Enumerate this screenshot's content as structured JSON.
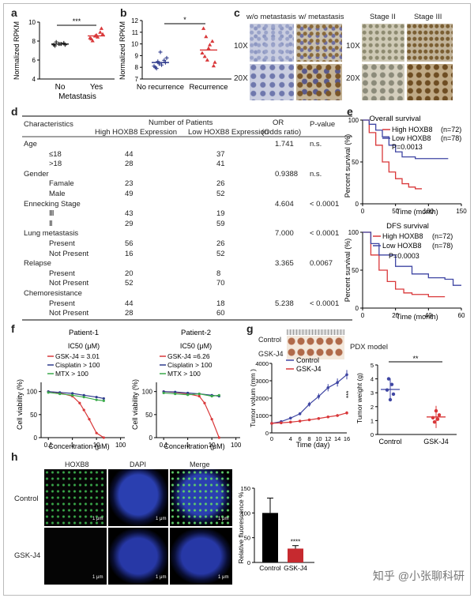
{
  "panels": [
    "a",
    "b",
    "c",
    "d",
    "e",
    "f",
    "g",
    "h"
  ],
  "panel_a": {
    "ylabel": "Normalized RPKM",
    "sig": "***",
    "xticks": [
      "No",
      "Yes"
    ],
    "xlabel": "Metastasis",
    "yticks": [
      "4",
      "6",
      "8",
      "10"
    ]
  },
  "panel_b": {
    "ylabel": "Normalized RPKM",
    "sig": "*",
    "xticks": [
      "No recurrence",
      "Recurrence"
    ],
    "yticks": [
      "7",
      "8",
      "9",
      "10",
      "11",
      "12"
    ]
  },
  "panel_c": {
    "left_cols": [
      "w/o metastasis",
      "w/ metastasis"
    ],
    "right_cols": [
      "Stage II",
      "Stage III"
    ],
    "rows": [
      "10X",
      "20X"
    ]
  },
  "panel_d": {
    "headers": {
      "characteristics": "Characteristics",
      "num": "Number of Patients",
      "high": "High HOXB8 Expression",
      "low": "Low HOXB8 Expression",
      "or": "OR",
      "or2": "(Odds ratio)",
      "p": "P-value"
    },
    "rows": [
      {
        "label": "Age",
        "high": "",
        "low": "",
        "or": "1.741",
        "p": "n.s.",
        "indent": false
      },
      {
        "label": "≤18",
        "high": "44",
        "low": "37",
        "or": "",
        "p": "",
        "indent": true
      },
      {
        "label": ">18",
        "high": "28",
        "low": "41",
        "or": "",
        "p": "",
        "indent": true
      },
      {
        "label": "Gender",
        "high": "",
        "low": "",
        "or": "0.9388",
        "p": "n.s.",
        "indent": false
      },
      {
        "label": "Famale",
        "high": "23",
        "low": "26",
        "or": "",
        "p": "",
        "indent": true
      },
      {
        "label": "Male",
        "high": "49",
        "low": "52",
        "or": "",
        "p": "",
        "indent": true
      },
      {
        "label": "Ennecking Stage",
        "high": "",
        "low": "",
        "or": "4.604",
        "p": "< 0.0001",
        "indent": false
      },
      {
        "label": "Ⅲ",
        "high": "43",
        "low": "19",
        "or": "",
        "p": "",
        "indent": true
      },
      {
        "label": "Ⅱ",
        "high": "29",
        "low": "59",
        "or": "",
        "p": "",
        "indent": true
      },
      {
        "label": "Lung metastasis",
        "high": "",
        "low": "",
        "or": "7.000",
        "p": "< 0.0001",
        "indent": false
      },
      {
        "label": "Present",
        "high": "56",
        "low": "26",
        "or": "",
        "p": "",
        "indent": true
      },
      {
        "label": "Not Present",
        "high": "16",
        "low": "52",
        "or": "",
        "p": "",
        "indent": true
      },
      {
        "label": "Relapse",
        "high": "",
        "low": "",
        "or": "3.365",
        "p": "0.0067",
        "indent": false
      },
      {
        "label": "Present",
        "high": "20",
        "low": "8",
        "or": "",
        "p": "",
        "indent": true
      },
      {
        "label": "Not Present",
        "high": "52",
        "low": "70",
        "or": "",
        "p": "",
        "indent": true
      },
      {
        "label": "Chemoresistance",
        "high": "",
        "low": "",
        "or": "",
        "p": "",
        "indent": false
      },
      {
        "label": "Present",
        "high": "44",
        "low": "18",
        "or": "5.238",
        "p": "< 0.0001",
        "indent": true
      },
      {
        "label": "Not Present",
        "high": "28",
        "low": "60",
        "or": "",
        "p": "",
        "indent": true
      }
    ]
  },
  "panel_e": {
    "top": {
      "title": "Overall survival",
      "high": "High HOXB8",
      "high_n": "(n=72)",
      "low": "Low HOXB8",
      "low_n": "(n=78)",
      "p": "P=0.0013",
      "ylabel": "Percent survival (%)",
      "xlabel": "Time (month)",
      "xticks": [
        "0",
        "50",
        "100",
        "150"
      ],
      "yticks": [
        "0",
        "50",
        "100"
      ]
    },
    "bottom": {
      "title": "DFS survival",
      "high": "High HOXB8",
      "high_n": "(n=72)",
      "low": "Low HOXB8",
      "low_n": "(n=78)",
      "p": "P=0.0003",
      "ylabel": "Percent survival (%)",
      "xlabel": "Time (month)",
      "xticks": [
        "0",
        "20",
        "40",
        "60"
      ],
      "yticks": [
        "0",
        "50",
        "100"
      ]
    }
  },
  "panel_f": {
    "p1": {
      "title": "Patient-1",
      "ic50": "IC50 (μM)",
      "l1": "GSK-J4 = 3.01",
      "l2": "Cisplatin > 100",
      "l3": "MTX > 100"
    },
    "p2": {
      "title": "Patient-2",
      "ic50": "IC50 (μM)",
      "l1": "GSK-J4 =6.26",
      "l2": "Cisplatin > 100",
      "l3": "MTX > 100"
    },
    "ylabel": "Cell viability (%)",
    "xlabel": "Concentration (μM)",
    "xticks": [
      "0.1",
      "1",
      "10",
      "100"
    ],
    "yticks": [
      "0",
      "50",
      "100"
    ]
  },
  "panel_g": {
    "img_rows": [
      "Control",
      "GSK-J4"
    ],
    "model": "PDX model",
    "ylabel": "Tumor volum (mm )",
    "xlabel": "Time (day)",
    "legend": [
      "Control",
      "GSK-J4"
    ],
    "sig": "***",
    "xticks": [
      "0",
      "4",
      "6",
      "8",
      "10",
      "12",
      "14",
      "16"
    ],
    "yticks": [
      "0",
      "1000",
      "2000",
      "3000",
      "4000"
    ],
    "w_ylabel": "Tumor weight (g)",
    "w_sig": "**",
    "w_xticks": [
      "Control",
      "GSK-J4"
    ],
    "w_yticks": [
      "0",
      "1",
      "2",
      "3",
      "4",
      "5"
    ]
  },
  "panel_h": {
    "cols": [
      "HOXB8",
      "DAPI",
      "Merge"
    ],
    "rows": [
      "Control",
      "GSK-J4"
    ],
    "scale": "1 μm",
    "ylabel": "Relative fluorescence %",
    "sig": "****",
    "xticks": [
      "Control",
      "GSK-J4"
    ],
    "yticks": [
      "0",
      "50",
      "100",
      "150"
    ]
  },
  "watermark": "知乎 @小张聊科研",
  "chart_data": [
    {
      "type": "scatter",
      "panel": "a",
      "categories": [
        "No",
        "Yes"
      ],
      "ylabel": "Normalized RPKM",
      "ylim": [
        4,
        10
      ],
      "series": [
        {
          "values": [
            7.6,
            7.7,
            7.8,
            7.5,
            7.7,
            7.6,
            7.9,
            7.7
          ]
        },
        {
          "values": [
            8.3,
            8.5,
            8.9,
            8.2,
            8.6,
            9.3,
            8.0,
            8.4,
            8.7
          ]
        }
      ]
    },
    {
      "type": "scatter",
      "panel": "b",
      "categories": [
        "No recurrence",
        "Recurrence"
      ],
      "ylabel": "Normalized RPKM",
      "ylim": [
        7,
        12
      ],
      "series": [
        {
          "values": [
            8.1,
            8.3,
            8.6,
            8.0,
            9.3,
            8.4,
            7.9,
            8.2,
            8.8,
            8.5
          ]
        },
        {
          "values": [
            9.2,
            8.6,
            10.2,
            11.3,
            9.6,
            8.1,
            8.9,
            9.9,
            8.4,
            10.6
          ]
        }
      ]
    },
    {
      "type": "line",
      "panel": "e-top",
      "xlabel": "Time (month)",
      "ylabel": "Percent survival (%)",
      "ylim": [
        0,
        100
      ],
      "series": [
        {
          "name": "High HOXB8",
          "x": [
            0,
            10,
            20,
            30,
            40,
            50,
            60,
            70,
            80,
            90
          ],
          "values": [
            100,
            85,
            70,
            50,
            38,
            30,
            24,
            20,
            18,
            18
          ]
        },
        {
          "name": "Low HOXB8",
          "x": [
            0,
            10,
            20,
            30,
            40,
            50,
            60,
            80,
            100,
            130
          ],
          "values": [
            100,
            95,
            88,
            80,
            70,
            62,
            56,
            54,
            54,
            54
          ]
        }
      ]
    },
    {
      "type": "line",
      "panel": "e-bottom",
      "xlabel": "Time (month)",
      "ylabel": "Percent survival (%)",
      "ylim": [
        0,
        100
      ],
      "series": [
        {
          "name": "High HOXB8",
          "x": [
            0,
            5,
            10,
            15,
            20,
            25,
            30,
            40,
            50
          ],
          "values": [
            100,
            70,
            50,
            35,
            25,
            20,
            18,
            15,
            15
          ]
        },
        {
          "name": "Low HOXB8",
          "x": [
            0,
            5,
            10,
            20,
            30,
            40,
            50,
            55,
            60
          ],
          "values": [
            100,
            85,
            70,
            55,
            45,
            40,
            38,
            30,
            30
          ]
        }
      ]
    },
    {
      "type": "line",
      "panel": "f-1",
      "xlabel": "Concentration (μM)",
      "ylabel": "Cell viability (%)",
      "ylim": [
        0,
        120
      ],
      "series": [
        {
          "name": "GSK-J4",
          "x": [
            0.1,
            0.3,
            1,
            2,
            3,
            5,
            10,
            20
          ],
          "values": [
            100,
            97,
            90,
            75,
            60,
            40,
            10,
            0
          ]
        },
        {
          "name": "Cisplatin",
          "x": [
            0.1,
            0.3,
            1,
            3,
            10,
            20
          ],
          "values": [
            100,
            98,
            96,
            92,
            88,
            85
          ]
        },
        {
          "name": "MTX",
          "x": [
            0.1,
            0.3,
            1,
            3,
            10,
            20
          ],
          "values": [
            98,
            95,
            92,
            88,
            82,
            80
          ]
        }
      ]
    },
    {
      "type": "line",
      "panel": "f-2",
      "xlabel": "Concentration (μM)",
      "ylabel": "Cell viability (%)",
      "ylim": [
        0,
        120
      ],
      "series": [
        {
          "name": "GSK-J4",
          "x": [
            0.1,
            0.3,
            1,
            3,
            5,
            10,
            20
          ],
          "values": [
            100,
            98,
            95,
            90,
            75,
            40,
            0
          ]
        },
        {
          "name": "Cisplatin",
          "x": [
            0.1,
            0.3,
            1,
            3,
            10,
            20
          ],
          "values": [
            100,
            99,
            97,
            95,
            92,
            90
          ]
        },
        {
          "name": "MTX",
          "x": [
            0.1,
            0.3,
            1,
            3,
            10,
            20
          ],
          "values": [
            97,
            95,
            93,
            95,
            90,
            92
          ]
        }
      ]
    },
    {
      "type": "line",
      "panel": "g",
      "xlabel": "Time (day)",
      "ylabel": "Tumor volum (mm )",
      "ylim": [
        0,
        4000
      ],
      "series": [
        {
          "name": "Control",
          "x": [
            0,
            2,
            4,
            6,
            8,
            10,
            12,
            14,
            16
          ],
          "values": [
            550,
            650,
            850,
            1100,
            1650,
            2100,
            2600,
            2900,
            3350
          ]
        },
        {
          "name": "GSK-J4",
          "x": [
            0,
            2,
            4,
            6,
            8,
            10,
            12,
            14,
            16
          ],
          "values": [
            550,
            580,
            620,
            680,
            750,
            830,
            920,
            1000,
            1150
          ]
        }
      ]
    },
    {
      "type": "scatter",
      "panel": "g-weight",
      "categories": [
        "Control",
        "GSK-J4"
      ],
      "ylabel": "Tumor weight (g)",
      "ylim": [
        0,
        5
      ],
      "series": [
        {
          "values": [
            3.2,
            4.0,
            2.5,
            3.6,
            2.9
          ]
        },
        {
          "values": [
            1.2,
            0.9,
            1.7,
            1.1,
            1.4
          ]
        }
      ]
    },
    {
      "type": "bar",
      "panel": "h",
      "categories": [
        "Control",
        "GSK-J4"
      ],
      "values": [
        100,
        28
      ],
      "ylabel": "Relative fluorescence %",
      "ylim": [
        0,
        150
      ]
    }
  ]
}
